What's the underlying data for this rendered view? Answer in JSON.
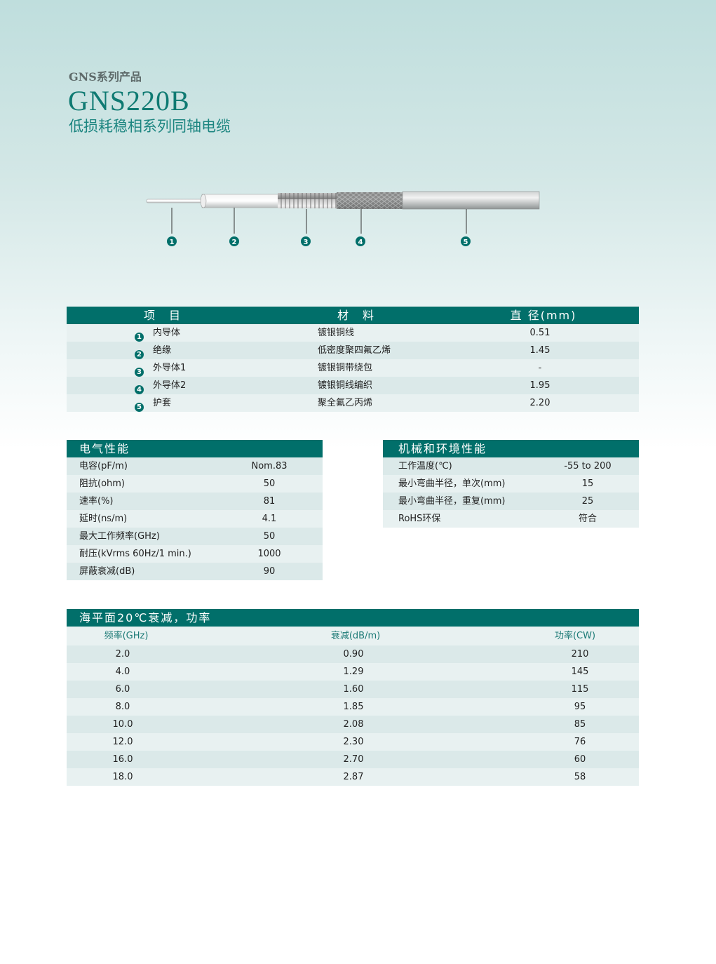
{
  "header": {
    "series": "GNS系列产品",
    "model": "GNS220B",
    "subtitle": "低损耗稳相系列同轴电缆"
  },
  "diagram": {
    "callouts": [
      "1",
      "2",
      "3",
      "4",
      "5"
    ]
  },
  "colors": {
    "accent": "#016f6a",
    "row_dark": "#dbe9e9",
    "row_light": "#e8f1f1"
  },
  "materials": {
    "headers": [
      "项　目",
      "材　料",
      "直 径(mm)"
    ],
    "rows": [
      {
        "n": "1",
        "item": "内导体",
        "material": "镀银铜线",
        "diameter": "0.51"
      },
      {
        "n": "2",
        "item": "绝缘",
        "material": "低密度聚四氟乙烯",
        "diameter": "1.45"
      },
      {
        "n": "3",
        "item": "外导体1",
        "material": "镀银铜带绕包",
        "diameter": "-"
      },
      {
        "n": "4",
        "item": "外导体2",
        "material": "镀银铜线编织",
        "diameter": "1.95"
      },
      {
        "n": "5",
        "item": "护套",
        "material": "聚全氟乙丙烯",
        "diameter": "2.20"
      }
    ]
  },
  "electrical": {
    "title": "电气性能",
    "rows": [
      {
        "label": "电容(pF/m)",
        "value": "Nom.83"
      },
      {
        "label": "阻抗(ohm)",
        "value": "50"
      },
      {
        "label": "速率(%)",
        "value": "81"
      },
      {
        "label": "延时(ns/m)",
        "value": "4.1"
      },
      {
        "label": "最大工作频率(GHz)",
        "value": "50"
      },
      {
        "label": "耐压(kVrms 60Hz/1 min.)",
        "value": "1000"
      },
      {
        "label": "屏蔽衰减(dB)",
        "value": "90"
      }
    ]
  },
  "mechanical": {
    "title": "机械和环境性能",
    "rows": [
      {
        "label": "工作温度(℃)",
        "value": "-55 to 200"
      },
      {
        "label": "最小弯曲半径，单次(mm)",
        "value": "15"
      },
      {
        "label": "最小弯曲半径，重复(mm)",
        "value": "25"
      },
      {
        "label": "RoHS环保",
        "value": "符合"
      }
    ]
  },
  "attenuation": {
    "title": "海平面20℃衰减，功率",
    "headers": [
      "频率(GHz)",
      "衰减(dB/m)",
      "功率(CW)"
    ],
    "rows": [
      {
        "freq": "2.0",
        "att": "0.90",
        "power": "210"
      },
      {
        "freq": "4.0",
        "att": "1.29",
        "power": "145"
      },
      {
        "freq": "6.0",
        "att": "1.60",
        "power": "115"
      },
      {
        "freq": "8.0",
        "att": "1.85",
        "power": "95"
      },
      {
        "freq": "10.0",
        "att": "2.08",
        "power": "85"
      },
      {
        "freq": "12.0",
        "att": "2.30",
        "power": "76"
      },
      {
        "freq": "16.0",
        "att": "2.70",
        "power": "60"
      },
      {
        "freq": "18.0",
        "att": "2.87",
        "power": "58"
      }
    ]
  }
}
